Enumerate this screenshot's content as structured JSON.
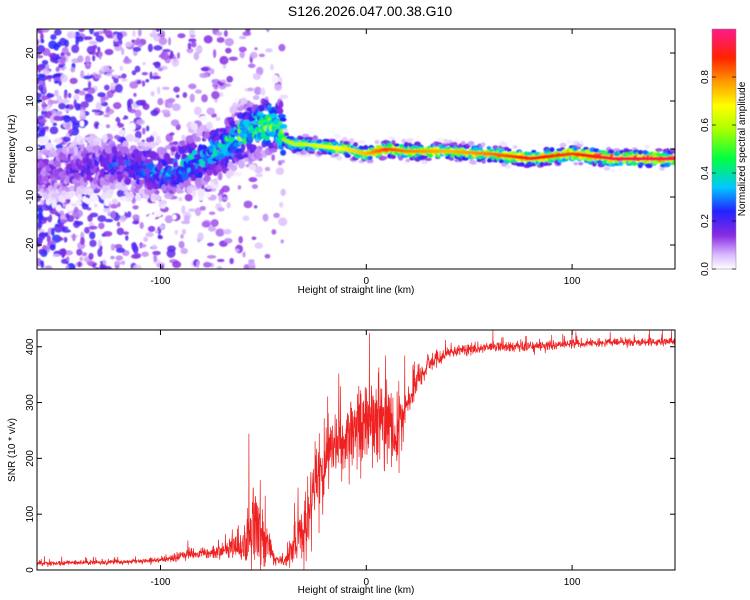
{
  "figure_title": "S126.2026.047.00.38.G10",
  "colors": {
    "snr_line": "#ee2020",
    "frame": "#000000",
    "background": "#ffffff"
  },
  "chart_data": [
    {
      "type": "heatmap",
      "name": "spectrogram",
      "xlabel": "Height of straight line (km)",
      "ylabel": "Frequency (Hz)",
      "xlim": [
        -160,
        150
      ],
      "ylim": [
        -25,
        25
      ],
      "x_ticks": [
        {
          "value": -100,
          "label": "-100"
        },
        {
          "value": 0,
          "label": "0"
        },
        {
          "value": 100,
          "label": "100"
        }
      ],
      "y_ticks": [
        {
          "value": -20,
          "label": "-20"
        },
        {
          "value": -10,
          "label": "-10"
        },
        {
          "value": 0,
          "label": "0"
        },
        {
          "value": 10,
          "label": "10"
        },
        {
          "value": 20,
          "label": "20"
        }
      ],
      "colorbar": {
        "label": "Normalized spectral amplitude",
        "range": [
          0,
          1
        ],
        "colormap": "rainbow (white-violet-blue-cyan-green-yellow-red-pink)",
        "ticks": [
          {
            "value": 0.0,
            "label": "0.0"
          },
          {
            "value": 0.2,
            "label": "0.2"
          },
          {
            "value": 0.4,
            "label": "0.4"
          },
          {
            "value": 0.6,
            "label": "0.6"
          },
          {
            "value": 0.8,
            "label": "0.8"
          }
        ]
      },
      "ridge": {
        "description": "dominant frequency vs height",
        "x": [
          -160,
          -140,
          -120,
          -100,
          -90,
          -80,
          -70,
          -60,
          -50,
          -44,
          -40,
          -35,
          -30,
          -20,
          -10,
          0,
          10,
          20,
          40,
          60,
          80,
          100,
          120,
          150
        ],
        "y": [
          -5,
          -4,
          -3,
          -5,
          -4,
          -2,
          0,
          3,
          5,
          6,
          2,
          1,
          1,
          0.5,
          0,
          -1,
          0,
          -0.5,
          -0.5,
          -1,
          -2,
          -1,
          -2,
          -2
        ],
        "amplitude": [
          0.15,
          0.15,
          0.2,
          0.25,
          0.3,
          0.3,
          0.35,
          0.4,
          0.45,
          0.5,
          0.5,
          0.55,
          0.55,
          0.6,
          0.65,
          0.7,
          0.8,
          0.75,
          0.7,
          0.75,
          0.85,
          0.8,
          0.9,
          0.9
        ]
      },
      "noise_region": {
        "x_range": [
          -160,
          -40
        ],
        "y_range": [
          -25,
          25
        ]
      }
    },
    {
      "type": "line",
      "name": "snr",
      "xlabel": "Height of straight line (km)",
      "ylabel": "SNR (10 * v/v)",
      "xlim": [
        -160,
        150
      ],
      "ylim": [
        0,
        430
      ],
      "x_ticks": [
        {
          "value": -100,
          "label": "-100"
        },
        {
          "value": 0,
          "label": "0"
        },
        {
          "value": 100,
          "label": "100"
        }
      ],
      "y_ticks": [
        {
          "value": 0,
          "label": "0"
        },
        {
          "value": 100,
          "label": "100"
        },
        {
          "value": 200,
          "label": "200"
        },
        {
          "value": 300,
          "label": "300"
        },
        {
          "value": 400,
          "label": "400"
        }
      ],
      "envelope": {
        "description": "mean SNR trend; trace shows strong fluctuation around it",
        "x": [
          -160,
          -120,
          -100,
          -90,
          -80,
          -70,
          -60,
          -55,
          -50,
          -45,
          -40,
          -35,
          -30,
          -25,
          -20,
          -15,
          -10,
          -5,
          0,
          5,
          10,
          15,
          20,
          30,
          40,
          60,
          80,
          100,
          120,
          150
        ],
        "y": [
          12,
          14,
          18,
          25,
          30,
          35,
          45,
          80,
          60,
          20,
          15,
          40,
          80,
          150,
          200,
          230,
          220,
          260,
          280,
          260,
          270,
          240,
          300,
          370,
          390,
          400,
          400,
          405,
          408,
          410
        ],
        "noise": [
          4,
          4,
          5,
          8,
          10,
          12,
          30,
          70,
          50,
          8,
          8,
          30,
          60,
          70,
          70,
          60,
          60,
          60,
          70,
          70,
          70,
          60,
          30,
          15,
          10,
          8,
          8,
          7,
          7,
          7
        ]
      }
    }
  ]
}
